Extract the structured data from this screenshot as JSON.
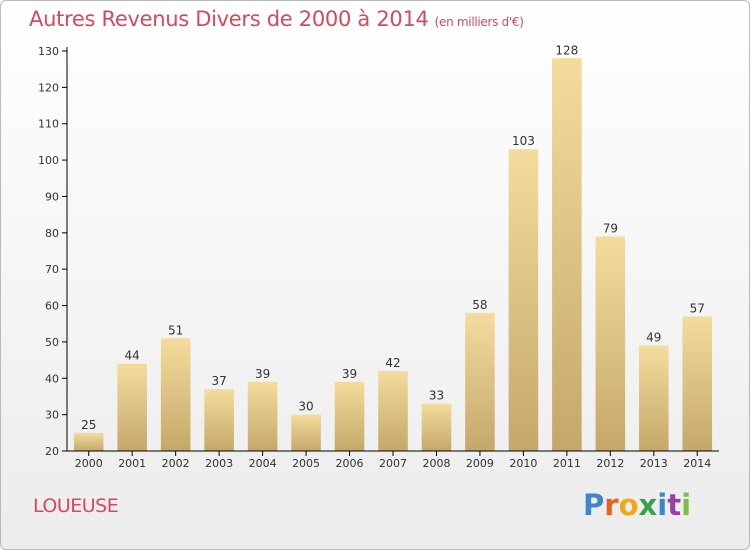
{
  "header": {
    "title": "Autres Revenus Divers de 2000 à 2014",
    "subtitle": "(en milliers d'€)"
  },
  "footer": {
    "commune": "LOUEUSE",
    "logo_text": "Proxiti",
    "logo_letters": [
      "P",
      "r",
      "o",
      "x",
      "i",
      "t",
      "i"
    ],
    "logo_colors": [
      "#3f86c9",
      "#e8621e",
      "#f0a818",
      "#3aa14a",
      "#3f86c9",
      "#9b3fa6",
      "#7ac143"
    ]
  },
  "chart_data": {
    "type": "bar",
    "categories": [
      "2000",
      "2001",
      "2002",
      "2003",
      "2004",
      "2005",
      "2006",
      "2007",
      "2008",
      "2009",
      "2010",
      "2011",
      "2012",
      "2013",
      "2014"
    ],
    "values": [
      25,
      44,
      51,
      37,
      39,
      30,
      39,
      42,
      33,
      58,
      103,
      128,
      79,
      49,
      57
    ],
    "title": "Autres Revenus Divers de 2000 à 2014",
    "subtitle": "(en milliers d'€)",
    "xlabel": "",
    "ylabel": "",
    "ylim": [
      20,
      130
    ],
    "yticks": [
      20,
      30,
      40,
      50,
      60,
      70,
      80,
      90,
      100,
      110,
      120,
      130
    ],
    "grid": false,
    "legend": "none",
    "colors": {
      "bar_light": "#f3dc9d",
      "bar_dark": "#c4a86a",
      "axis": "#000000",
      "text": "#333333",
      "accent": "#d8485c"
    }
  }
}
